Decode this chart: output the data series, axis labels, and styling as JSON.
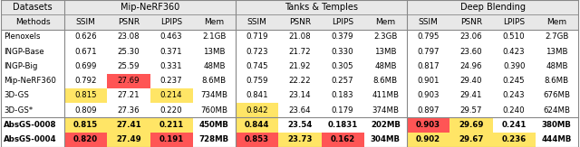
{
  "datasets": [
    "Mip-NeRF360",
    "Tanks & Temples",
    "Deep Blending"
  ],
  "col_headers": [
    "SSIM",
    "PSNR",
    "LPIPS",
    "Mem"
  ],
  "rows": [
    [
      "Plenoxels",
      "0.626",
      "23.08",
      "0.463",
      "2.1GB",
      "0.719",
      "21.08",
      "0.379",
      "2.3GB",
      "0.795",
      "23.06",
      "0.510",
      "2.7GB"
    ],
    [
      "INGP-Base",
      "0.671",
      "25.30",
      "0.371",
      "13MB",
      "0.723",
      "21.72",
      "0.330",
      "13MB",
      "0.797",
      "23.60",
      "0.423",
      "13MB"
    ],
    [
      "INGP-Big",
      "0.699",
      "25.59",
      "0.331",
      "48MB",
      "0.745",
      "21.92",
      "0.305",
      "48MB",
      "0.817",
      "24.96",
      "0.390",
      "48MB"
    ],
    [
      "Mip-NeRF360",
      "0.792",
      "27.69",
      "0.237",
      "8.6MB",
      "0.759",
      "22.22",
      "0.257",
      "8.6MB",
      "0.901",
      "29.40",
      "0.245",
      "8.6MB"
    ],
    [
      "3D-GS",
      "0.815",
      "27.21",
      "0.214",
      "734MB",
      "0.841",
      "23.14",
      "0.183",
      "411MB",
      "0.903",
      "29.41",
      "0.243",
      "676MB"
    ],
    [
      "3D-GS*",
      "0.809",
      "27.36",
      "0.220",
      "760MB",
      "0.842",
      "23.64",
      "0.179",
      "374MB",
      "0.897",
      "29.57",
      "0.240",
      "624MB"
    ],
    [
      "AbsGS-0008",
      "0.815",
      "27.41",
      "0.211",
      "450MB",
      "0.844",
      "23.54",
      "0.1831",
      "202MB",
      "0.903",
      "29.69",
      "0.241",
      "380MB"
    ],
    [
      "AbsGS-0004",
      "0.820",
      "27.49",
      "0.191",
      "728MB",
      "0.853",
      "23.73",
      "0.162",
      "304MB",
      "0.902",
      "29.67",
      "0.236",
      "444MB"
    ]
  ],
  "highlights": [
    {
      "row": 3,
      "col": 1,
      "color": "#FF5555"
    },
    {
      "row": 4,
      "col": 0,
      "color": "#FFE566"
    },
    {
      "row": 4,
      "col": 2,
      "color": "#FFE566"
    },
    {
      "row": 5,
      "col": 4,
      "color": "#FFE566"
    },
    {
      "row": 6,
      "col": 0,
      "color": "#FFE566"
    },
    {
      "row": 6,
      "col": 1,
      "color": "#FFE566"
    },
    {
      "row": 6,
      "col": 2,
      "color": "#FFE566"
    },
    {
      "row": 6,
      "col": 4,
      "color": "#FFE566"
    },
    {
      "row": 6,
      "col": 8,
      "color": "#FF5555"
    },
    {
      "row": 6,
      "col": 9,
      "color": "#FFE566"
    },
    {
      "row": 7,
      "col": 0,
      "color": "#FF5555"
    },
    {
      "row": 7,
      "col": 1,
      "color": "#FFE566"
    },
    {
      "row": 7,
      "col": 2,
      "color": "#FF5555"
    },
    {
      "row": 7,
      "col": 4,
      "color": "#FF5555"
    },
    {
      "row": 7,
      "col": 5,
      "color": "#FFE566"
    },
    {
      "row": 7,
      "col": 6,
      "color": "#FF5555"
    },
    {
      "row": 7,
      "col": 8,
      "color": "#FFE566"
    },
    {
      "row": 7,
      "col": 9,
      "color": "#FFE566"
    },
    {
      "row": 7,
      "col": 10,
      "color": "#FFE566"
    }
  ],
  "bold_rows": [
    6,
    7
  ],
  "header_gray": "#E8E8E8",
  "line_color": "#888888",
  "font_size_data": 6.2,
  "font_size_header": 6.5,
  "font_size_dataset": 7.0
}
